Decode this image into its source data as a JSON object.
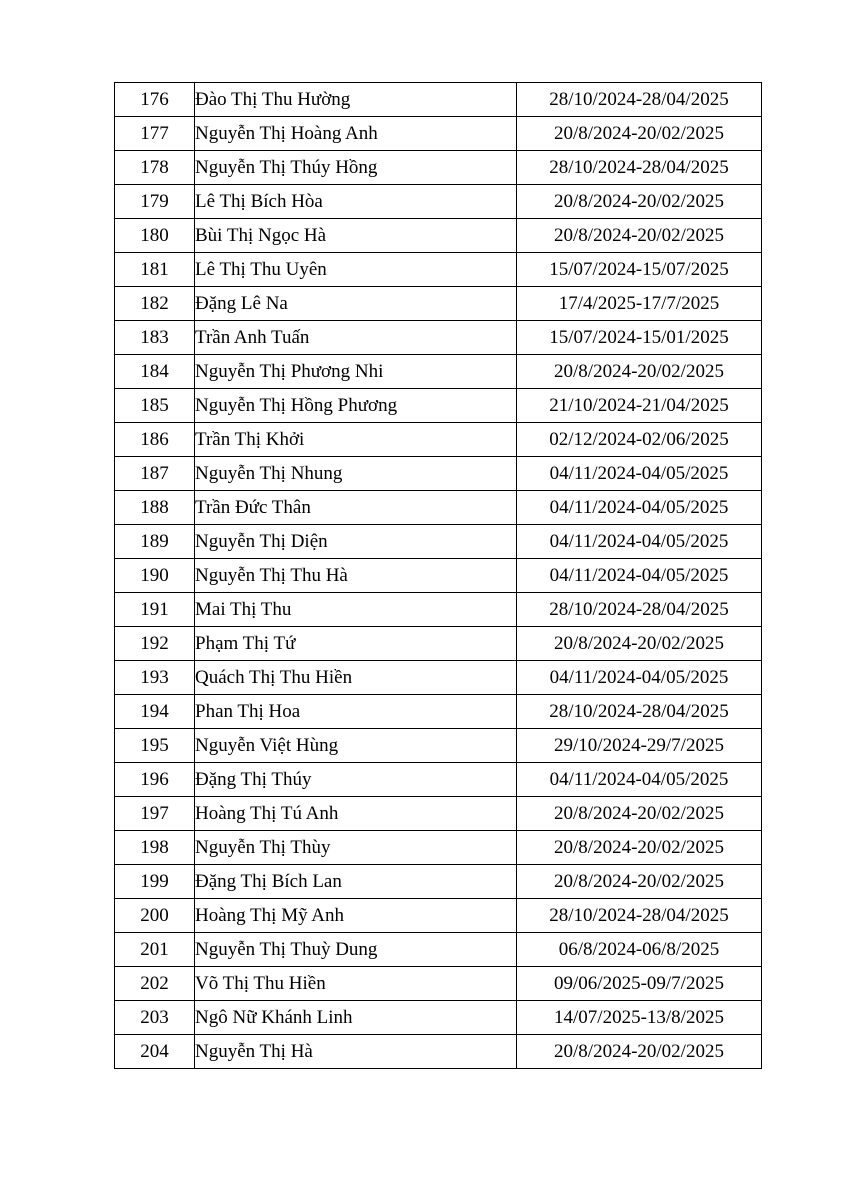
{
  "colors": {
    "page_background": "#ffffff",
    "table_border": "#000000",
    "text": "#000000"
  },
  "table": {
    "rows": [
      {
        "no": "176",
        "name": "Đào Thị Thu Hường",
        "period": "28/10/2024-28/04/2025"
      },
      {
        "no": "177",
        "name": "Nguyễn Thị Hoàng Anh",
        "period": "20/8/2024-20/02/2025"
      },
      {
        "no": "178",
        "name": "Nguyễn Thị Thúy Hồng",
        "period": "28/10/2024-28/04/2025"
      },
      {
        "no": "179",
        "name": "Lê Thị Bích Hòa",
        "period": "20/8/2024-20/02/2025"
      },
      {
        "no": "180",
        "name": "Bùi Thị Ngọc Hà",
        "period": "20/8/2024-20/02/2025"
      },
      {
        "no": "181",
        "name": "Lê Thị Thu Uyên",
        "period": "15/07/2024-15/07/2025"
      },
      {
        "no": "182",
        "name": "Đặng Lê Na",
        "period": "17/4/2025-17/7/2025"
      },
      {
        "no": "183",
        "name": "Trần Anh Tuấn",
        "period": "15/07/2024-15/01/2025"
      },
      {
        "no": "184",
        "name": "Nguyễn Thị Phương Nhi",
        "period": "20/8/2024-20/02/2025"
      },
      {
        "no": "185",
        "name": "Nguyễn Thị Hồng Phương",
        "period": "21/10/2024-21/04/2025"
      },
      {
        "no": "186",
        "name": "Trần Thị Khởi",
        "period": "02/12/2024-02/06/2025"
      },
      {
        "no": "187",
        "name": "Nguyễn Thị Nhung",
        "period": "04/11/2024-04/05/2025"
      },
      {
        "no": "188",
        "name": "Trần Đức Thân",
        "period": "04/11/2024-04/05/2025"
      },
      {
        "no": "189",
        "name": "Nguyễn Thị Diện",
        "period": "04/11/2024-04/05/2025"
      },
      {
        "no": "190",
        "name": "Nguyễn Thị Thu Hà",
        "period": "04/11/2024-04/05/2025"
      },
      {
        "no": "191",
        "name": "Mai Thị Thu",
        "period": "28/10/2024-28/04/2025"
      },
      {
        "no": "192",
        "name": "Phạm Thị Tứ",
        "period": "20/8/2024-20/02/2025"
      },
      {
        "no": "193",
        "name": "Quách Thị Thu Hiền",
        "period": "04/11/2024-04/05/2025"
      },
      {
        "no": "194",
        "name": "Phan Thị Hoa",
        "period": "28/10/2024-28/04/2025"
      },
      {
        "no": "195",
        "name": "Nguyễn Việt Hùng",
        "period": "29/10/2024-29/7/2025"
      },
      {
        "no": "196",
        "name": "Đặng Thị Thúy",
        "period": "04/11/2024-04/05/2025"
      },
      {
        "no": "197",
        "name": "Hoàng Thị Tú Anh",
        "period": "20/8/2024-20/02/2025"
      },
      {
        "no": "198",
        "name": "Nguyễn Thị Thùy",
        "period": "20/8/2024-20/02/2025"
      },
      {
        "no": "199",
        "name": "Đặng Thị Bích Lan",
        "period": "20/8/2024-20/02/2025"
      },
      {
        "no": "200",
        "name": "Hoàng Thị Mỹ Anh",
        "period": "28/10/2024-28/04/2025"
      },
      {
        "no": "201",
        "name": "Nguyễn Thị Thuỳ Dung",
        "period": "06/8/2024-06/8/2025"
      },
      {
        "no": "202",
        "name": "Võ Thị Thu Hiền",
        "period": "09/06/2025-09/7/2025"
      },
      {
        "no": "203",
        "name": "Ngô Nữ Khánh Linh",
        "period": "14/07/2025-13/8/2025"
      },
      {
        "no": "204",
        "name": "Nguyễn Thị Hà",
        "period": "20/8/2024-20/02/2025"
      }
    ]
  }
}
